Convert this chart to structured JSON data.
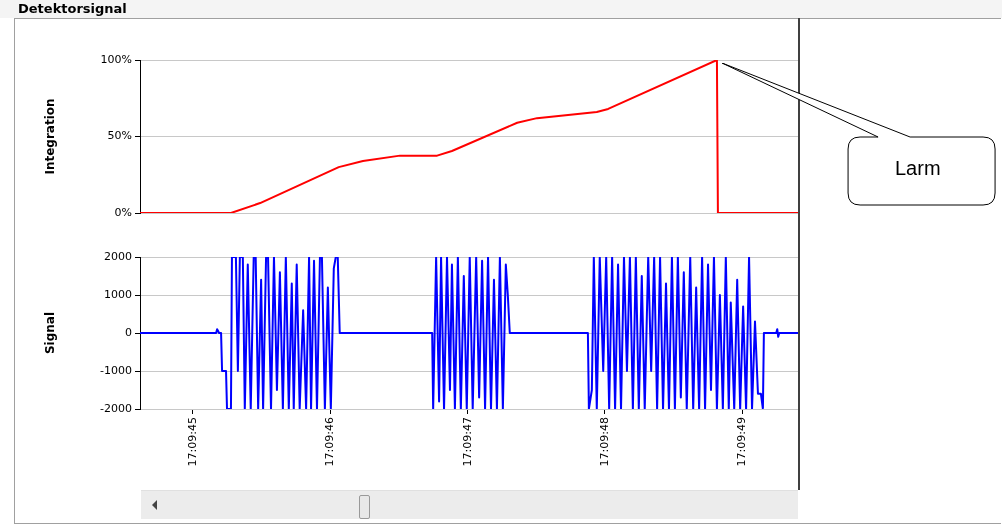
{
  "chart_data": [
    {
      "type": "line",
      "title": "Detektorsignal",
      "ylabel": "Integration",
      "color": "#ff0000",
      "x": [
        17.162393,
        17.162577,
        17.162636,
        17.162795,
        17.162844,
        17.162919,
        17.162994,
        17.163024,
        17.163156,
        17.163196,
        17.163317,
        17.16334,
        17.16356,
        17.163562,
        17.163724
      ],
      "values": [
        0,
        0,
        6.5,
        30,
        34,
        37.5,
        37.5,
        40.5,
        59,
        62,
        66,
        68,
        100,
        0,
        0
      ],
      "xlim": [
        17.162393,
        17.163724
      ],
      "ylim": [
        0,
        100
      ],
      "yticks": [
        {
          "value": 0,
          "label": "0%"
        },
        {
          "value": 50,
          "label": "50%"
        },
        {
          "value": 100,
          "label": "100%"
        }
      ],
      "grid": "y",
      "tick_labels": "y",
      "annotations": [
        "Larm"
      ]
    },
    {
      "type": "line",
      "ylabel": "Signal",
      "color": "#0000ff",
      "x": [
        17.162393,
        17.162547,
        17.162549,
        17.162553,
        17.162557,
        17.162559,
        17.162567,
        17.162569,
        17.162577,
        17.162579,
        17.162587,
        17.162591,
        17.162595,
        17.162601,
        17.162605,
        17.162611,
        17.162617,
        17.162623,
        17.162627,
        17.162632,
        17.162638,
        17.162642,
        17.162648,
        17.162652,
        17.162658,
        17.162664,
        17.16267,
        17.162676,
        17.162682,
        17.162688,
        17.162694,
        17.1627,
        17.162704,
        17.16271,
        17.162716,
        17.162723,
        17.162729,
        17.162735,
        17.162739,
        17.162745,
        17.162751,
        17.162757,
        17.162761,
        17.162767,
        17.162773,
        17.162779,
        17.162785,
        17.162789,
        17.162793,
        17.162797,
        17.162984,
        17.162986,
        17.162992,
        17.162998,
        17.163002,
        17.163008,
        17.163014,
        17.16302,
        17.163024,
        17.16303,
        17.163036,
        17.163042,
        17.163048,
        17.163054,
        17.16306,
        17.163066,
        17.163073,
        17.163079,
        17.163085,
        17.163091,
        17.163097,
        17.163103,
        17.163109,
        17.163115,
        17.163121,
        17.163127,
        17.163133,
        17.163137,
        17.163141,
        17.163299,
        17.163301,
        17.163307,
        17.163311,
        17.163317,
        17.163323,
        17.16333,
        17.163336,
        17.163342,
        17.163348,
        17.163354,
        17.16336,
        17.163366,
        17.163372,
        17.163378,
        17.163384,
        17.16339,
        17.163396,
        17.163402,
        17.163408,
        17.163414,
        17.163421,
        17.163427,
        17.163433,
        17.163439,
        17.163445,
        17.163451,
        17.163457,
        17.163463,
        17.163469,
        17.163475,
        17.163481,
        17.163487,
        17.163493,
        17.163499,
        17.163506,
        17.163512,
        17.163518,
        17.163524,
        17.16353,
        17.163536,
        17.163542,
        17.163548,
        17.163554,
        17.16356,
        17.163566,
        17.163572,
        17.163578,
        17.163584,
        17.163588,
        17.163595,
        17.163601,
        17.163607,
        17.163613,
        17.163619,
        17.163625,
        17.163631,
        17.163637,
        17.163643,
        17.163649,
        17.163653,
        17.163655,
        17.16368,
        17.163682,
        17.163684,
        17.163686,
        17.163724
      ],
      "values": [
        0,
        0,
        100,
        0,
        0,
        -1000,
        -1000,
        -2000,
        -2000,
        2000,
        2000,
        -1000,
        2000,
        2000,
        -2000,
        1800,
        -2000,
        2000,
        2000,
        -2000,
        1400,
        -2000,
        2000,
        2000,
        -2000,
        2000,
        -1500,
        1600,
        -2000,
        2000,
        -2000,
        1300,
        -2000,
        1800,
        -2000,
        600,
        -2000,
        2000,
        -2000,
        1900,
        -2000,
        2000,
        2000,
        -2000,
        1200,
        -2000,
        1700,
        2000,
        2000,
        0,
        0,
        -2000,
        2000,
        -1800,
        2000,
        -2000,
        2000,
        -1500,
        1800,
        -2000,
        2000,
        -2000,
        1500,
        -2000,
        2000,
        -2000,
        2000,
        -1700,
        1900,
        -2000,
        2000,
        -2000,
        1400,
        -2000,
        2000,
        -2000,
        1800,
        1000,
        0,
        0,
        -2000,
        -1500,
        2000,
        -2000,
        2000,
        -1000,
        2000,
        -2000,
        2000,
        -2000,
        1800,
        -2000,
        2000,
        -1000,
        2000,
        -2000,
        2000,
        -2000,
        1500,
        -2000,
        2000,
        -1000,
        2000,
        -2000,
        2000,
        -2000,
        1300,
        -2000,
        2000,
        -2000,
        2000,
        -1700,
        1600,
        -2000,
        2000,
        -2000,
        1200,
        -2000,
        2000,
        -2000,
        1800,
        -1500,
        2000,
        -2000,
        1000,
        -2000,
        2000,
        -2000,
        800,
        -2000,
        1400,
        -2000,
        700,
        -2000,
        2000,
        -2000,
        300,
        -1600,
        -1600,
        -2000,
        0,
        0,
        100,
        -100,
        0,
        0
      ],
      "xlim": [
        17.162393,
        17.163724
      ],
      "ylim": [
        -2000,
        2000
      ],
      "xticks": [
        {
          "value": 17.1625,
          "label": "17:09:45"
        },
        {
          "value": 17.162778,
          "label": "17:09:46"
        },
        {
          "value": 17.163056,
          "label": "17:09:47"
        },
        {
          "value": 17.163333,
          "label": "17:09:48"
        },
        {
          "value": 17.163611,
          "label": "17:09:49"
        }
      ],
      "yticks": [
        -2000,
        -1000,
        0,
        1000,
        2000
      ],
      "grid": "y"
    }
  ]
}
